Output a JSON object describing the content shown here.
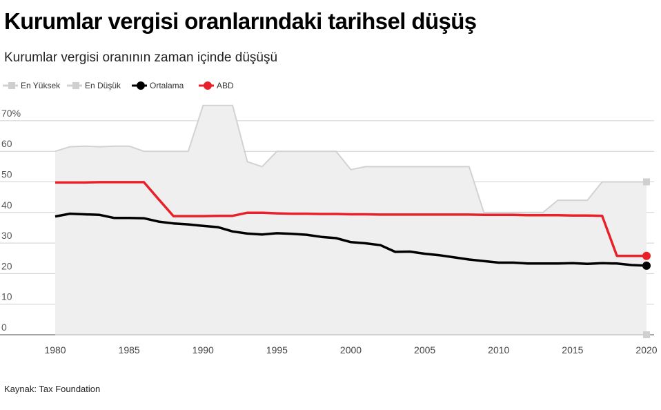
{
  "chart_data": {
    "type": "line",
    "title": "Kurumlar vergisi oranlarındaki tarihsel düşüş",
    "subtitle": "Kurumlar vergisi oranının zaman içinde düşüşü",
    "source": "Kaynak: Tax Foundation",
    "xlim": [
      1980,
      2020
    ],
    "ylim": [
      0,
      75
    ],
    "y_ticks": [
      {
        "value": 70,
        "label": "70%"
      },
      {
        "value": 60,
        "label": "60"
      },
      {
        "value": 50,
        "label": "50"
      },
      {
        "value": 40,
        "label": "40"
      },
      {
        "value": 30,
        "label": "30"
      },
      {
        "value": 20,
        "label": "20"
      },
      {
        "value": 10,
        "label": "10"
      },
      {
        "value": 0,
        "label": "0"
      }
    ],
    "x_ticks": [
      "1980",
      "1985",
      "1990",
      "1995",
      "2000",
      "2005",
      "2010",
      "2015",
      "2020"
    ],
    "grid": true,
    "legend_position": "top-left",
    "legend": [
      {
        "name": "En Yüksek",
        "marker": "square",
        "color": "#cccccc"
      },
      {
        "name": "En Düşük",
        "marker": "square",
        "color": "#cccccc"
      },
      {
        "name": "Ortalama",
        "marker": "circle",
        "color": "#000000"
      },
      {
        "name": "ABD",
        "marker": "circle",
        "color": "#e8202a"
      }
    ],
    "series": [
      {
        "name": "En Yüksek",
        "color": "#cccccc",
        "x": [
          1980,
          1981,
          1982,
          1983,
          1984,
          1985,
          1986,
          1987,
          1988,
          1989,
          1990,
          1991,
          1992,
          1993,
          1994,
          1995,
          1996,
          1997,
          1998,
          1999,
          2000,
          2001,
          2002,
          2003,
          2004,
          2005,
          2006,
          2007,
          2008,
          2009,
          2010,
          2011,
          2012,
          2013,
          2014,
          2015,
          2016,
          2017,
          2018,
          2019,
          2020
        ],
        "values": [
          60,
          61.5,
          61.7,
          61.5,
          61.7,
          61.7,
          60,
          60,
          60,
          60,
          75,
          75,
          75,
          56.6,
          55,
          60,
          60,
          60,
          60,
          60,
          54,
          55,
          55,
          55,
          55,
          55,
          55,
          55,
          55,
          40,
          40,
          40,
          40,
          40,
          44,
          44,
          44,
          50,
          50,
          50,
          50
        ]
      },
      {
        "name": "En Düşük",
        "color": "#cccccc",
        "x": [
          1980,
          2020
        ],
        "values": [
          0,
          0
        ]
      },
      {
        "name": "Ortalama",
        "color": "#000000",
        "x": [
          1980,
          1981,
          1982,
          1983,
          1984,
          1985,
          1986,
          1987,
          1988,
          1989,
          1990,
          1991,
          1992,
          1993,
          1994,
          1995,
          1996,
          1997,
          1998,
          1999,
          2000,
          2001,
          2002,
          2003,
          2004,
          2005,
          2006,
          2007,
          2008,
          2009,
          2010,
          2011,
          2012,
          2013,
          2014,
          2015,
          2016,
          2017,
          2018,
          2019,
          2020
        ],
        "values": [
          38.7,
          39.6,
          39.4,
          39.2,
          38.2,
          38.2,
          38.1,
          37,
          36.4,
          36.1,
          35.6,
          35.2,
          33.8,
          33.1,
          32.8,
          33.2,
          33,
          32.7,
          32,
          31.6,
          30.3,
          29.9,
          29.3,
          27.1,
          27.2,
          26.5,
          26,
          25.3,
          24.6,
          24.1,
          23.6,
          23.6,
          23.3,
          23.3,
          23.3,
          23.4,
          23.2,
          23.4,
          23.3,
          22.8,
          22.6
        ]
      },
      {
        "name": "ABD",
        "color": "#e8202a",
        "x": [
          1980,
          1981,
          1982,
          1983,
          1984,
          1985,
          1986,
          1987,
          1988,
          1989,
          1990,
          1991,
          1992,
          1993,
          1994,
          1995,
          1996,
          1997,
          1998,
          1999,
          2000,
          2001,
          2002,
          2003,
          2004,
          2005,
          2006,
          2007,
          2008,
          2009,
          2010,
          2011,
          2012,
          2013,
          2014,
          2015,
          2016,
          2017,
          2018,
          2019,
          2020
        ],
        "values": [
          49.8,
          49.8,
          49.8,
          49.9,
          49.9,
          49.9,
          49.9,
          44.3,
          38.8,
          38.8,
          38.8,
          38.9,
          38.9,
          39.9,
          39.9,
          39.7,
          39.6,
          39.6,
          39.5,
          39.5,
          39.4,
          39.4,
          39.3,
          39.3,
          39.3,
          39.3,
          39.3,
          39.3,
          39.3,
          39.2,
          39.2,
          39.2,
          39.1,
          39.1,
          39.1,
          39,
          39,
          38.9,
          25.8,
          25.8,
          25.8
        ]
      }
    ]
  }
}
